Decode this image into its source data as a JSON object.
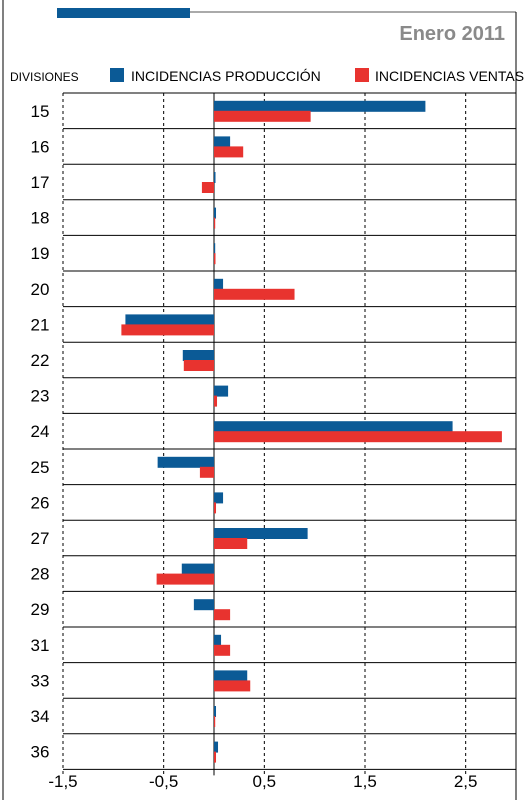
{
  "header": {
    "period": "Enero 2011"
  },
  "legend": {
    "divisions_label": "DIVISIONES",
    "items": [
      {
        "label": "INCIDENCIAS PRODUCCIÓN",
        "color": "#0b5a96"
      },
      {
        "label": "INCIDENCIAS VENTAS",
        "color": "#e8332f"
      }
    ]
  },
  "colors": {
    "produccion": "#0b5a96",
    "ventas": "#e8332f",
    "grid": "#000000",
    "header_text": "#8a8a8a"
  },
  "chart_data": {
    "type": "bar",
    "orientation": "horizontal",
    "title": "",
    "xlabel": "",
    "ylabel": "DIVISIONES",
    "xlim": [
      -1.5,
      3.0
    ],
    "xticks": [
      -1.5,
      -0.5,
      0.5,
      1.5,
      2.5
    ],
    "xtick_labels": [
      "-1,5",
      "-0,5",
      "0,5",
      "1,5",
      "2,5"
    ],
    "grid": "vertical dashed",
    "legend_position": "top",
    "categories": [
      "15",
      "16",
      "17",
      "18",
      "19",
      "20",
      "21",
      "22",
      "23",
      "24",
      "25",
      "26",
      "27",
      "28",
      "29",
      "31",
      "33",
      "34",
      "36"
    ],
    "series": [
      {
        "name": "INCIDENCIAS PRODUCCIÓN",
        "color": "#0b5a96",
        "values": [
          2.1,
          0.16,
          0.01,
          0.02,
          0.0,
          0.09,
          -0.88,
          -0.31,
          0.14,
          2.37,
          -0.56,
          0.09,
          0.93,
          -0.32,
          -0.2,
          0.07,
          0.33,
          0.02,
          0.04
        ]
      },
      {
        "name": "INCIDENCIAS VENTAS",
        "color": "#e8332f",
        "values": [
          0.96,
          0.29,
          -0.12,
          0.0,
          0.01,
          0.8,
          -0.92,
          -0.3,
          0.03,
          2.86,
          -0.14,
          0.02,
          0.33,
          -0.57,
          0.16,
          0.16,
          0.36,
          0.0,
          0.02
        ]
      }
    ]
  }
}
